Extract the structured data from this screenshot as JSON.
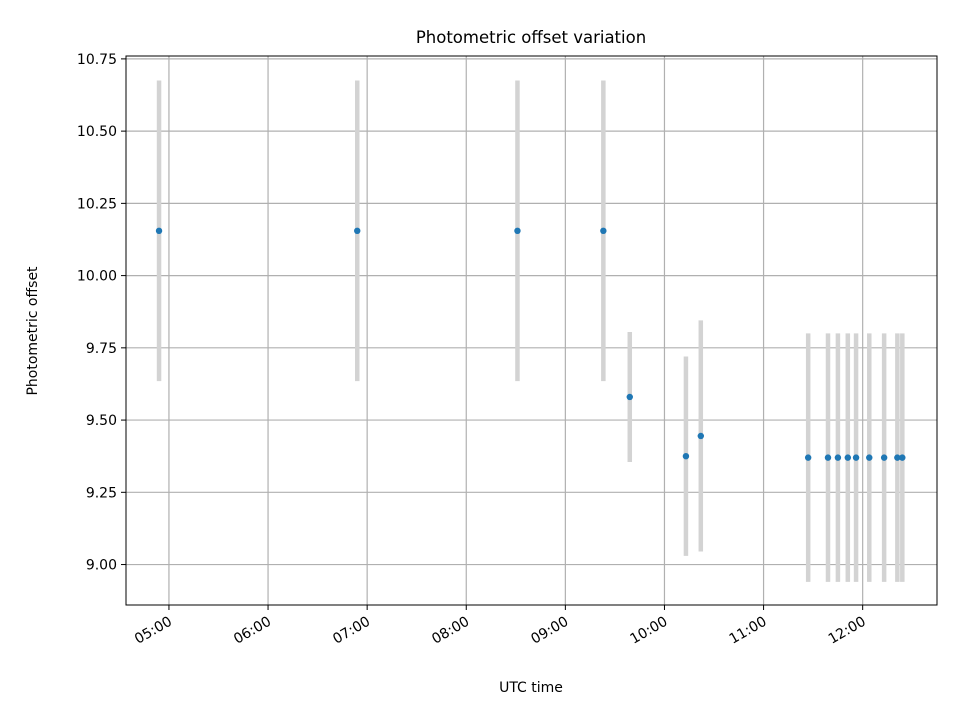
{
  "chart_data": {
    "type": "scatter",
    "title": "Photometric offset variation",
    "xlabel": "UTC time",
    "ylabel": "Photometric offset",
    "x_ticks": [
      "05:00",
      "06:00",
      "07:00",
      "08:00",
      "09:00",
      "10:00",
      "11:00",
      "12:00"
    ],
    "y_ticks": [
      "9.00",
      "9.25",
      "9.50",
      "9.75",
      "10.00",
      "10.25",
      "10.50",
      "10.75"
    ],
    "xlim": [
      "04:34",
      "12:45"
    ],
    "ylim": [
      8.86,
      10.76
    ],
    "grid": true,
    "point_color": "#1f77b4",
    "errorbar_color": "#d3d3d3",
    "points": [
      {
        "x": "04:54",
        "y": 10.155,
        "yerr": 0.52
      },
      {
        "x": "06:54",
        "y": 10.155,
        "yerr": 0.52
      },
      {
        "x": "08:31",
        "y": 10.155,
        "yerr": 0.52
      },
      {
        "x": "09:23",
        "y": 10.155,
        "yerr": 0.52
      },
      {
        "x": "09:39",
        "y": 9.58,
        "yerr": 0.225
      },
      {
        "x": "10:13",
        "y": 9.375,
        "yerr": 0.345
      },
      {
        "x": "10:22",
        "y": 9.445,
        "yerr": 0.4
      },
      {
        "x": "11:27",
        "y": 9.37,
        "yerr": 0.43
      },
      {
        "x": "11:39",
        "y": 9.37,
        "yerr": 0.43
      },
      {
        "x": "11:45",
        "y": 9.37,
        "yerr": 0.43
      },
      {
        "x": "11:51",
        "y": 9.37,
        "yerr": 0.43
      },
      {
        "x": "11:56",
        "y": 9.37,
        "yerr": 0.43
      },
      {
        "x": "12:04",
        "y": 9.37,
        "yerr": 0.43
      },
      {
        "x": "12:13",
        "y": 9.37,
        "yerr": 0.43
      },
      {
        "x": "12:21",
        "y": 9.37,
        "yerr": 0.43
      },
      {
        "x": "12:24",
        "y": 9.37,
        "yerr": 0.43
      }
    ]
  }
}
